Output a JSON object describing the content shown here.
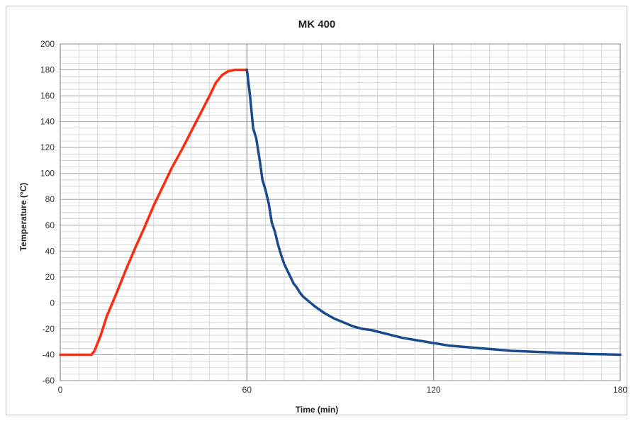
{
  "chart_data": {
    "type": "line",
    "title": "MK 400",
    "xlabel": "Time (min)",
    "ylabel": "Temperature (°C)",
    "xlim": [
      0,
      180
    ],
    "ylim": [
      -60,
      200
    ],
    "x_ticks": [
      0,
      60,
      120,
      180
    ],
    "y_ticks": [
      -60,
      -40,
      -20,
      0,
      20,
      40,
      60,
      80,
      100,
      120,
      140,
      160,
      180,
      200
    ],
    "grid": true,
    "legend": "none",
    "series": [
      {
        "color": "#ff2a10",
        "points": [
          [
            0,
            -40
          ],
          [
            10,
            -40
          ],
          [
            11,
            -37
          ],
          [
            13,
            -25
          ],
          [
            15,
            -10
          ],
          [
            18,
            7
          ],
          [
            21,
            25
          ],
          [
            24,
            42
          ],
          [
            27,
            58
          ],
          [
            30,
            75
          ],
          [
            33,
            90
          ],
          [
            36,
            105
          ],
          [
            39,
            118
          ],
          [
            42,
            132
          ],
          [
            45,
            146
          ],
          [
            48,
            160
          ],
          [
            50,
            170
          ],
          [
            52,
            176
          ],
          [
            54,
            179
          ],
          [
            56,
            180
          ],
          [
            60,
            180
          ]
        ]
      },
      {
        "color": "#1a4b8c",
        "points": [
          [
            60,
            180
          ],
          [
            61,
            160
          ],
          [
            62,
            135
          ],
          [
            63,
            127
          ],
          [
            64,
            112
          ],
          [
            65,
            95
          ],
          [
            66,
            87
          ],
          [
            67,
            77
          ],
          [
            68,
            62
          ],
          [
            69,
            55
          ],
          [
            70,
            45
          ],
          [
            71,
            37
          ],
          [
            72,
            30
          ],
          [
            73,
            25
          ],
          [
            74,
            20
          ],
          [
            75,
            15
          ],
          [
            76,
            12
          ],
          [
            77,
            8
          ],
          [
            78,
            5
          ],
          [
            80,
            1
          ],
          [
            82,
            -3
          ],
          [
            85,
            -8
          ],
          [
            88,
            -12
          ],
          [
            91,
            -15
          ],
          [
            94,
            -18
          ],
          [
            97,
            -20
          ],
          [
            100,
            -21
          ],
          [
            105,
            -24
          ],
          [
            110,
            -27
          ],
          [
            115,
            -29
          ],
          [
            120,
            -31
          ],
          [
            125,
            -33
          ],
          [
            130,
            -34
          ],
          [
            135,
            -35
          ],
          [
            140,
            -36
          ],
          [
            145,
            -37
          ],
          [
            150,
            -37.5
          ],
          [
            155,
            -38
          ],
          [
            160,
            -38.5
          ],
          [
            165,
            -39
          ],
          [
            170,
            -39.5
          ],
          [
            175,
            -39.7
          ],
          [
            180,
            -40
          ]
        ]
      }
    ]
  }
}
